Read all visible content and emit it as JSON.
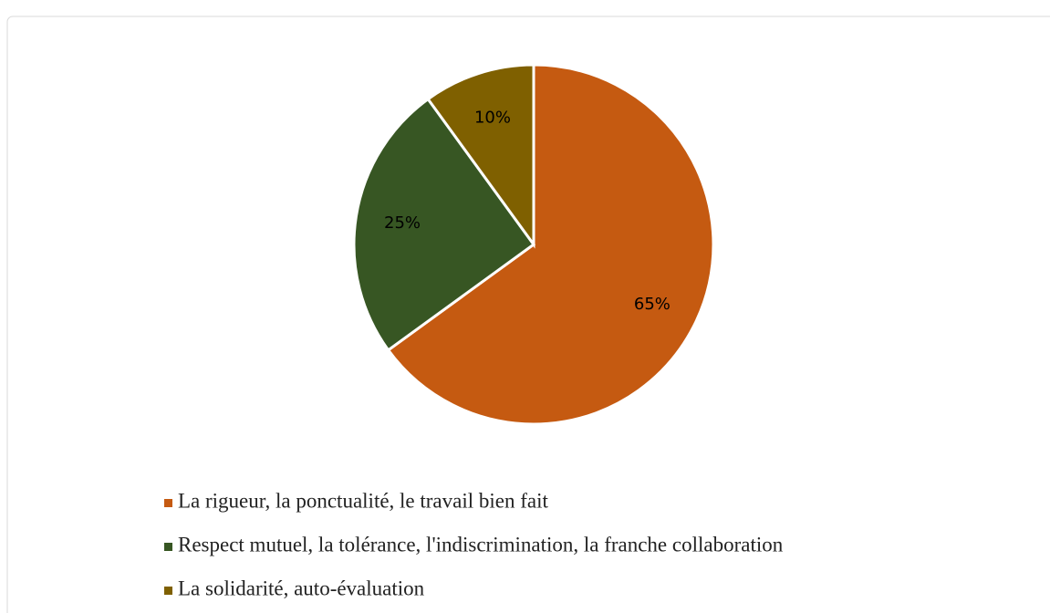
{
  "chart_data": {
    "type": "pie",
    "categories": [
      "La rigueur, la ponctualité, le travail bien fait",
      "Respect mutuel, la tolérance, l'indiscrimination, la franche collaboration",
      "La solidarité, auto-évaluation"
    ],
    "values": [
      65,
      25,
      10
    ],
    "value_labels": [
      "65%",
      "25%",
      "10%"
    ],
    "colors": [
      "#c55a11",
      "#375623",
      "#7f6000"
    ],
    "legend": "bottom"
  }
}
